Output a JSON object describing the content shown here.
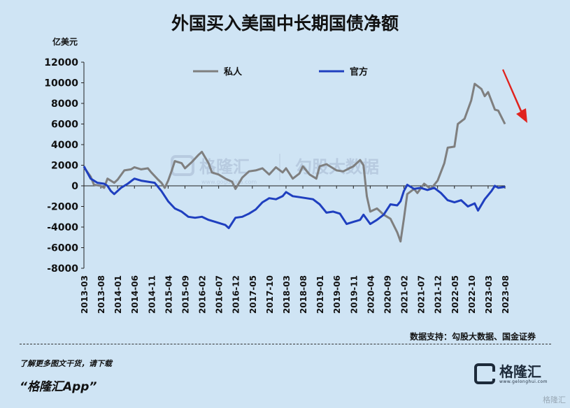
{
  "title": "外国买入美国中长期国债净额",
  "source": "数据支持：勾股大数据、国金证券",
  "promo_line": "了解更多图文干货，请下载",
  "promo_app": "“格隆汇App”",
  "logo": {
    "name": "格隆汇",
    "url": "www.gelonghui.com"
  },
  "watermark": {
    "brand": "格隆汇",
    "sub_brand": "勾股大数据",
    "url": "www.gogudata.com"
  },
  "corner_watermark": "格隆汇",
  "colors": {
    "private": "#7f7f7f",
    "official": "#1f3fbf",
    "arrow": "#e0231e",
    "background": "#cfe4f4"
  },
  "chart_data": {
    "type": "line",
    "title": "外国买入美国中长期国债净额",
    "ylabel": "亿美元",
    "ylim": [
      -8000,
      12000
    ],
    "yticks": [
      12000,
      10000,
      8000,
      6000,
      4000,
      2000,
      0,
      -2000,
      -4000,
      -6000,
      -8000
    ],
    "x_range": [
      "2013-03",
      "2023-08"
    ],
    "xticks": [
      "2013-03",
      "2013-08",
      "2014-01",
      "2014-06",
      "2014-11",
      "2015-04",
      "2015-09",
      "2016-02",
      "2016-07",
      "2016-12",
      "2017-05",
      "2017-10",
      "2018-03",
      "2018-08",
      "2019-01",
      "2019-06",
      "2019-11",
      "2020-04",
      "2020-09",
      "2021-02",
      "2021-07",
      "2021-12",
      "2022-05",
      "2022-10",
      "2023-03",
      "2023-08"
    ],
    "legend_position": "top",
    "grid": false,
    "annotation": "red arrow pointing down at the end of the series",
    "series": [
      {
        "name": "私人",
        "color": "#7f7f7f",
        "points": [
          [
            "2013-03",
            1800
          ],
          [
            "2013-05",
            900
          ],
          [
            "2013-06",
            100
          ],
          [
            "2013-08",
            0
          ],
          [
            "2013-09",
            -200
          ],
          [
            "2013-10",
            700
          ],
          [
            "2013-12",
            300
          ],
          [
            "2014-01",
            600
          ],
          [
            "2014-03",
            1500
          ],
          [
            "2014-05",
            1600
          ],
          [
            "2014-06",
            1800
          ],
          [
            "2014-08",
            1600
          ],
          [
            "2014-10",
            1700
          ],
          [
            "2014-11",
            1300
          ],
          [
            "2015-01",
            600
          ],
          [
            "2015-02",
            300
          ],
          [
            "2015-03",
            -200
          ],
          [
            "2015-04",
            500
          ],
          [
            "2015-05",
            1400
          ],
          [
            "2015-06",
            2400
          ],
          [
            "2015-08",
            2200
          ],
          [
            "2015-09",
            1700
          ],
          [
            "2015-11",
            2300
          ],
          [
            "2016-01",
            3000
          ],
          [
            "2016-02",
            3300
          ],
          [
            "2016-04",
            2200
          ],
          [
            "2016-05",
            1300
          ],
          [
            "2016-07",
            1100
          ],
          [
            "2016-09",
            700
          ],
          [
            "2016-11",
            400
          ],
          [
            "2016-12",
            -300
          ],
          [
            "2017-02",
            800
          ],
          [
            "2017-04",
            1400
          ],
          [
            "2017-06",
            1500
          ],
          [
            "2017-08",
            1700
          ],
          [
            "2017-10",
            1100
          ],
          [
            "2017-12",
            1800
          ],
          [
            "2018-02",
            1300
          ],
          [
            "2018-03",
            1700
          ],
          [
            "2018-05",
            700
          ],
          [
            "2018-07",
            1200
          ],
          [
            "2018-08",
            1900
          ],
          [
            "2018-10",
            1100
          ],
          [
            "2018-12",
            700
          ],
          [
            "2019-01",
            1900
          ],
          [
            "2019-03",
            2100
          ],
          [
            "2019-06",
            1500
          ],
          [
            "2019-08",
            1400
          ],
          [
            "2019-11",
            1900
          ],
          [
            "2020-01",
            2500
          ],
          [
            "2020-02",
            2000
          ],
          [
            "2020-03",
            -1000
          ],
          [
            "2020-04",
            -2500
          ],
          [
            "2020-06",
            -2200
          ],
          [
            "2020-08",
            -2800
          ],
          [
            "2020-10",
            -3200
          ],
          [
            "2020-12",
            -4500
          ],
          [
            "2021-01",
            -5400
          ],
          [
            "2021-02",
            -3200
          ],
          [
            "2021-03",
            -800
          ],
          [
            "2021-05",
            -300
          ],
          [
            "2021-06",
            -700
          ],
          [
            "2021-08",
            200
          ],
          [
            "2021-10",
            -300
          ],
          [
            "2021-12",
            500
          ],
          [
            "2022-02",
            2200
          ],
          [
            "2022-03",
            3700
          ],
          [
            "2022-05",
            3800
          ],
          [
            "2022-06",
            6000
          ],
          [
            "2022-08",
            6500
          ],
          [
            "2022-10",
            8300
          ],
          [
            "2022-11",
            9900
          ],
          [
            "2023-01",
            9400
          ],
          [
            "2023-02",
            8700
          ],
          [
            "2023-03",
            9100
          ],
          [
            "2023-05",
            7400
          ],
          [
            "2023-06",
            7300
          ],
          [
            "2023-08",
            6000
          ]
        ]
      },
      {
        "name": "官方",
        "color": "#1f3fbf",
        "points": [
          [
            "2013-03",
            1900
          ],
          [
            "2013-05",
            700
          ],
          [
            "2013-07",
            300
          ],
          [
            "2013-09",
            200
          ],
          [
            "2013-10",
            0
          ],
          [
            "2013-11",
            -500
          ],
          [
            "2013-12",
            -800
          ],
          [
            "2014-02",
            -200
          ],
          [
            "2014-04",
            200
          ],
          [
            "2014-06",
            700
          ],
          [
            "2014-08",
            500
          ],
          [
            "2014-10",
            400
          ],
          [
            "2014-12",
            300
          ],
          [
            "2015-02",
            -500
          ],
          [
            "2015-04",
            -1500
          ],
          [
            "2015-06",
            -2200
          ],
          [
            "2015-08",
            -2500
          ],
          [
            "2015-10",
            -3000
          ],
          [
            "2015-12",
            -3100
          ],
          [
            "2016-02",
            -3000
          ],
          [
            "2016-04",
            -3300
          ],
          [
            "2016-06",
            -3500
          ],
          [
            "2016-09",
            -3800
          ],
          [
            "2016-10",
            -4100
          ],
          [
            "2016-12",
            -3100
          ],
          [
            "2017-02",
            -3000
          ],
          [
            "2017-04",
            -2700
          ],
          [
            "2017-06",
            -2300
          ],
          [
            "2017-08",
            -1600
          ],
          [
            "2017-10",
            -1200
          ],
          [
            "2017-12",
            -1300
          ],
          [
            "2018-02",
            -1000
          ],
          [
            "2018-03",
            -600
          ],
          [
            "2018-05",
            -1000
          ],
          [
            "2018-07",
            -1100
          ],
          [
            "2018-09",
            -1200
          ],
          [
            "2018-11",
            -1300
          ],
          [
            "2019-01",
            -1800
          ],
          [
            "2019-03",
            -2600
          ],
          [
            "2019-05",
            -2500
          ],
          [
            "2019-07",
            -2700
          ],
          [
            "2019-09",
            -3700
          ],
          [
            "2019-11",
            -3500
          ],
          [
            "2020-01",
            -3300
          ],
          [
            "2020-02",
            -2800
          ],
          [
            "2020-04",
            -3700
          ],
          [
            "2020-06",
            -3300
          ],
          [
            "2020-08",
            -2800
          ],
          [
            "2020-10",
            -1800
          ],
          [
            "2020-12",
            -1900
          ],
          [
            "2021-01",
            -1500
          ],
          [
            "2021-02",
            -500
          ],
          [
            "2021-03",
            100
          ],
          [
            "2021-05",
            -300
          ],
          [
            "2021-07",
            -200
          ],
          [
            "2021-09",
            -400
          ],
          [
            "2021-11",
            -200
          ],
          [
            "2022-01",
            -700
          ],
          [
            "2022-03",
            -1400
          ],
          [
            "2022-05",
            -1600
          ],
          [
            "2022-07",
            -1400
          ],
          [
            "2022-09",
            -2000
          ],
          [
            "2022-11",
            -1700
          ],
          [
            "2022-12",
            -2400
          ],
          [
            "2023-02",
            -1300
          ],
          [
            "2023-04",
            -500
          ],
          [
            "2023-05",
            0
          ],
          [
            "2023-06",
            -200
          ],
          [
            "2023-08",
            -100
          ]
        ]
      }
    ]
  }
}
